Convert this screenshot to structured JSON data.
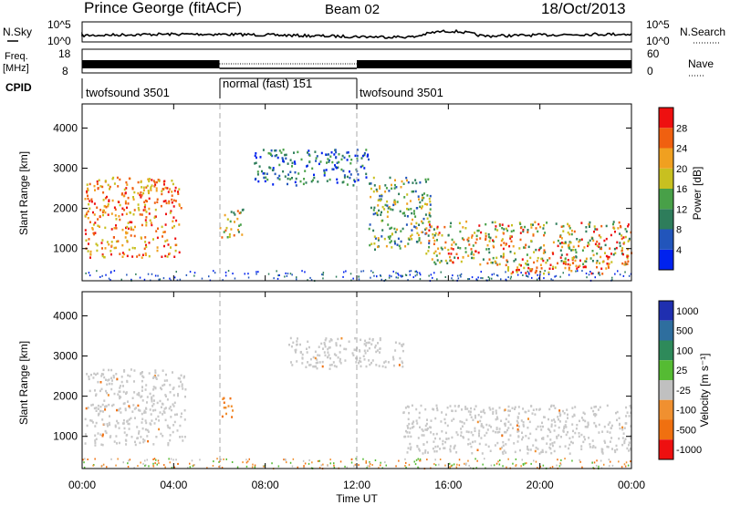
{
  "header": {
    "station": "Prince George (fitACF)",
    "beam": "Beam 02",
    "date": "18/Oct/2013"
  },
  "status_panels": {
    "noise": {
      "left_label": "N.Sky",
      "left_ticks": [
        "10^5",
        "10^0"
      ],
      "right_label": "N.Search",
      "right_ticks": [
        "10^5",
        "10^0"
      ]
    },
    "freq": {
      "left_label_1": "Freq.",
      "left_label_2": "[MHz]",
      "left_ticks": [
        "18",
        "8"
      ],
      "right_label": "Nave",
      "right_ticks": [
        "60",
        "0"
      ]
    },
    "cpid": {
      "label": "CPID",
      "segments": [
        {
          "name": "twofsound 3501",
          "start_hour": 0,
          "end_hour": 6
        },
        {
          "name": "normal (fast) 151",
          "start_hour": 6,
          "end_hour": 12
        },
        {
          "name": "twofsound 3501",
          "start_hour": 12,
          "end_hour": 24
        }
      ]
    }
  },
  "colors": {
    "power_scale": [
      "#0022ee",
      "#2255bb",
      "#2e7d5b",
      "#48a048",
      "#c8c020",
      "#f0a020",
      "#f06010",
      "#ee1010"
    ],
    "velocity_scale": [
      "#1f2fb0",
      "#2e6e9e",
      "#2e8a5a",
      "#55bb33",
      "#c0c0c0",
      "#f09030",
      "#f07010",
      "#ee1010"
    ],
    "ground_scatter": "#c8c8c8"
  },
  "chart_data": [
    {
      "type": "heatmap",
      "title": "Power",
      "xlabel": "Time UT",
      "ylabel": "Slant Range [km]",
      "x_tick_labels": [
        "00:00",
        "04:00",
        "08:00",
        "12:00",
        "16:00",
        "20:00",
        "00:00"
      ],
      "xlim_hours": [
        0,
        24
      ],
      "ylim": [
        200,
        4600
      ],
      "y_ticks": [
        1000,
        2000,
        3000,
        4000
      ],
      "colorbar": {
        "label": "Power [dB]",
        "ticks": [
          4,
          8,
          12,
          16,
          20,
          24,
          28
        ],
        "range": [
          0,
          32
        ]
      },
      "vertical_markers_hours": [
        6,
        12
      ],
      "regions": [
        {
          "t": [
            0.1,
            4.3
          ],
          "r": [
            800,
            2800
          ],
          "intensity": "high"
        },
        {
          "t": [
            6.0,
            7.0
          ],
          "r": [
            1300,
            2000
          ],
          "intensity": "medium"
        },
        {
          "t": [
            7.5,
            12.5
          ],
          "r": [
            2600,
            3500
          ],
          "intensity": "low"
        },
        {
          "t": [
            12.5,
            15.2
          ],
          "r": [
            1000,
            2800
          ],
          "intensity": "low-medium"
        },
        {
          "t": [
            15.0,
            24.0
          ],
          "r": [
            600,
            1700
          ],
          "intensity": "medium-high"
        },
        {
          "t": [
            18.5,
            23.0
          ],
          "r": [
            400,
            800
          ],
          "intensity": "high"
        }
      ]
    },
    {
      "type": "heatmap",
      "title": "Velocity",
      "xlabel": "Time UT",
      "ylabel": "Slant Range [km]",
      "x_tick_labels": [
        "00:00",
        "04:00",
        "08:00",
        "12:00",
        "16:00",
        "20:00",
        "00:00"
      ],
      "xlim_hours": [
        0,
        24
      ],
      "ylim": [
        200,
        4600
      ],
      "y_ticks": [
        1000,
        2000,
        3000,
        4000
      ],
      "colorbar": {
        "label": "Velocity [m s⁻¹]",
        "ticks": [
          "1000",
          "500",
          "100",
          "25",
          "-25",
          "-100",
          "-500",
          "-1000"
        ]
      },
      "vertical_markers_hours": [
        6,
        12
      ],
      "regions": [
        {
          "t": [
            0.1,
            4.5
          ],
          "r": [
            800,
            2700
          ],
          "class": "ground_scatter"
        },
        {
          "t": [
            6.0,
            6.6
          ],
          "r": [
            1500,
            2000
          ],
          "class": "-100 to -500"
        },
        {
          "t": [
            9.0,
            14.0
          ],
          "r": [
            2700,
            3500
          ],
          "class": "ground_scatter"
        },
        {
          "t": [
            14.0,
            24.0
          ],
          "r": [
            600,
            1800
          ],
          "class": "ground_scatter"
        }
      ]
    }
  ],
  "time_axis_label": "Time UT"
}
